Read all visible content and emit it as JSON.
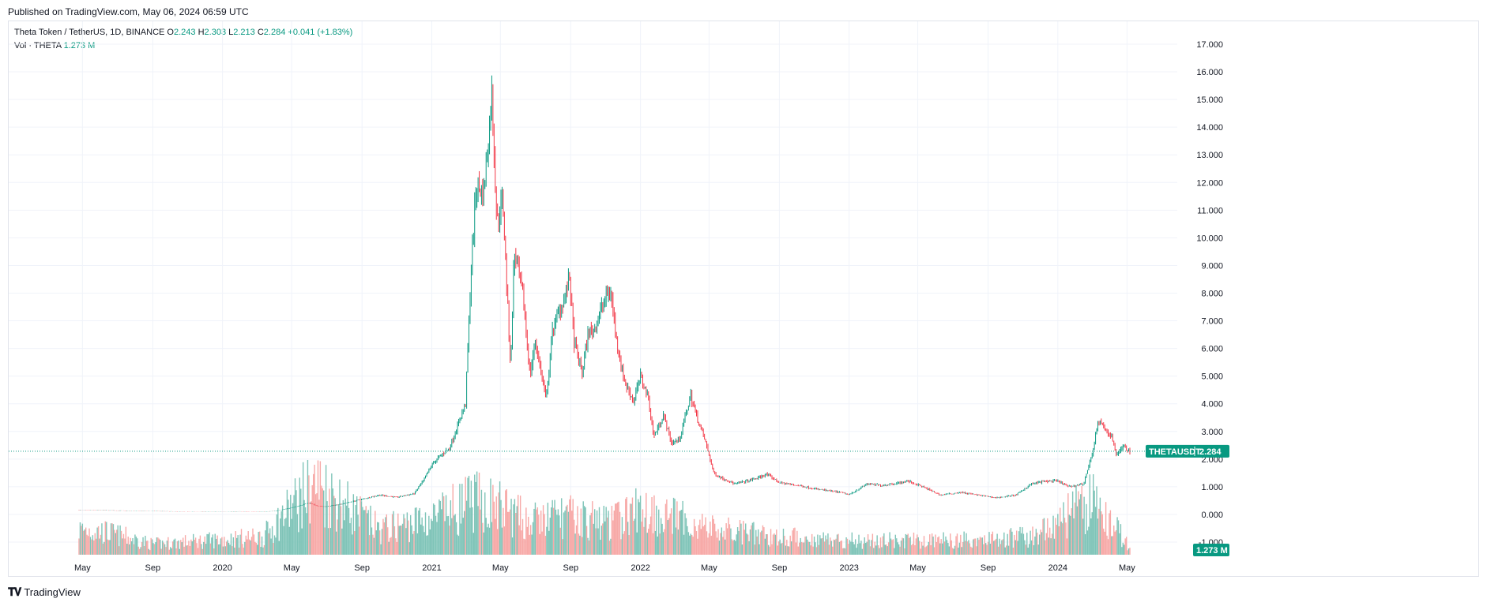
{
  "header": {
    "published": "Published on TradingView.com, May 06, 2024 06:59 UTC"
  },
  "legend": {
    "symbol": "Theta Token / TetherUS, 1D, BINANCE",
    "o_label": "O",
    "o": "2.243",
    "h_label": "H",
    "h": "2.303",
    "l_label": "L",
    "l": "2.213",
    "c_label": "C",
    "c": "2.284",
    "change": "+0.041 (+1.83%)",
    "vol_label": "Vol · THETA",
    "vol_value": "1.273 M"
  },
  "badges": {
    "symbol": "THETAUSDT",
    "price": "2.284",
    "volume": "1.273 M"
  },
  "colors": {
    "up": "#089981",
    "down": "#f23645",
    "up_vol": "#7fc4b8",
    "down_vol": "#f7a9a7",
    "grid": "#f0f3fa",
    "text": "#131722"
  },
  "footer": {
    "brand": "TradingView",
    "logo_icon": "tradingview-logo-icon"
  },
  "chart_data": {
    "type": "candlestick",
    "title": "Theta Token / TetherUS, 1D, BINANCE",
    "ylim": [
      -1,
      17
    ],
    "y_ticks": [
      "17.000",
      "16.000",
      "15.000",
      "14.000",
      "13.000",
      "12.000",
      "11.000",
      "10.000",
      "9.000",
      "8.000",
      "7.000",
      "6.000",
      "5.000",
      "4.000",
      "3.000",
      "2.000",
      "1.000",
      "0.000",
      "-1.000"
    ],
    "y_tick_values": [
      17,
      16,
      15,
      14,
      13,
      12,
      11,
      10,
      9,
      8,
      7,
      6,
      5,
      4,
      3,
      2,
      1,
      0,
      -1
    ],
    "x_ticks": [
      "May",
      "Sep",
      "2020",
      "May",
      "Sep",
      "2021",
      "May",
      "Sep",
      "2022",
      "May",
      "Sep",
      "2023",
      "May",
      "Sep",
      "2024",
      "May"
    ],
    "x_tick_dates": [
      "2019-05-01",
      "2019-09-01",
      "2020-01-01",
      "2020-05-01",
      "2020-09-01",
      "2021-01-01",
      "2021-05-01",
      "2021-09-01",
      "2022-01-01",
      "2022-05-01",
      "2022-09-01",
      "2023-01-01",
      "2023-05-01",
      "2023-09-01",
      "2024-01-01",
      "2024-05-01"
    ],
    "x_start": "2019-04-25",
    "x_end": "2024-05-06",
    "last_price": 2.284,
    "series": [
      {
        "name": "THETAUSDT",
        "points": [
          [
            "2019-04-25",
            0.16
          ],
          [
            "2019-06-01",
            0.15
          ],
          [
            "2019-07-01",
            0.14
          ],
          [
            "2019-08-01",
            0.13
          ],
          [
            "2019-09-01",
            0.12
          ],
          [
            "2019-10-01",
            0.11
          ],
          [
            "2019-11-01",
            0.1
          ],
          [
            "2019-12-01",
            0.09
          ],
          [
            "2020-01-01",
            0.1
          ],
          [
            "2020-02-01",
            0.11
          ],
          [
            "2020-03-01",
            0.09
          ],
          [
            "2020-04-01",
            0.12
          ],
          [
            "2020-05-01",
            0.24
          ],
          [
            "2020-06-01",
            0.42
          ],
          [
            "2020-06-15",
            0.3
          ],
          [
            "2020-07-01",
            0.28
          ],
          [
            "2020-08-01",
            0.4
          ],
          [
            "2020-09-01",
            0.55
          ],
          [
            "2020-10-01",
            0.7
          ],
          [
            "2020-11-01",
            0.62
          ],
          [
            "2020-12-01",
            0.75
          ],
          [
            "2020-12-20",
            1.3
          ],
          [
            "2021-01-01",
            1.8
          ],
          [
            "2021-01-15",
            2.1
          ],
          [
            "2021-02-01",
            2.4
          ],
          [
            "2021-02-15",
            3.2
          ],
          [
            "2021-03-01",
            4.0
          ],
          [
            "2021-03-10",
            8.5
          ],
          [
            "2021-03-20",
            12.0
          ],
          [
            "2021-04-01",
            11.5
          ],
          [
            "2021-04-10",
            13.5
          ],
          [
            "2021-04-16",
            15.2
          ],
          [
            "2021-04-25",
            10.5
          ],
          [
            "2021-05-05",
            11.5
          ],
          [
            "2021-05-19",
            5.2
          ],
          [
            "2021-05-25",
            9.5
          ],
          [
            "2021-06-10",
            7.8
          ],
          [
            "2021-06-22",
            5.0
          ],
          [
            "2021-07-01",
            6.3
          ],
          [
            "2021-07-20",
            4.1
          ],
          [
            "2021-08-01",
            6.8
          ],
          [
            "2021-08-20",
            7.8
          ],
          [
            "2021-08-30",
            8.5
          ],
          [
            "2021-09-07",
            6.2
          ],
          [
            "2021-09-21",
            5.1
          ],
          [
            "2021-10-01",
            6.5
          ],
          [
            "2021-10-15",
            6.8
          ],
          [
            "2021-10-30",
            7.8
          ],
          [
            "2021-11-10",
            8.1
          ],
          [
            "2021-11-20",
            6.3
          ],
          [
            "2021-12-04",
            4.8
          ],
          [
            "2021-12-20",
            4.1
          ],
          [
            "2022-01-01",
            5.0
          ],
          [
            "2022-01-15",
            4.2
          ],
          [
            "2022-01-24",
            2.8
          ],
          [
            "2022-02-10",
            3.6
          ],
          [
            "2022-02-24",
            2.6
          ],
          [
            "2022-03-10",
            2.7
          ],
          [
            "2022-03-30",
            4.3
          ],
          [
            "2022-04-10",
            3.5
          ],
          [
            "2022-04-25",
            2.6
          ],
          [
            "2022-05-09",
            1.5
          ],
          [
            "2022-05-20",
            1.35
          ],
          [
            "2022-06-15",
            1.1
          ],
          [
            "2022-07-15",
            1.25
          ],
          [
            "2022-08-10",
            1.45
          ],
          [
            "2022-09-01",
            1.15
          ],
          [
            "2022-10-01",
            1.05
          ],
          [
            "2022-11-10",
            0.9
          ],
          [
            "2022-12-15",
            0.8
          ],
          [
            "2023-01-01",
            0.72
          ],
          [
            "2023-02-01",
            1.1
          ],
          [
            "2023-03-01",
            1.05
          ],
          [
            "2023-04-15",
            1.2
          ],
          [
            "2023-05-15",
            0.95
          ],
          [
            "2023-06-10",
            0.7
          ],
          [
            "2023-07-15",
            0.8
          ],
          [
            "2023-08-20",
            0.68
          ],
          [
            "2023-09-15",
            0.6
          ],
          [
            "2023-10-20",
            0.7
          ],
          [
            "2023-11-15",
            1.1
          ],
          [
            "2023-12-10",
            1.2
          ],
          [
            "2024-01-01",
            1.2
          ],
          [
            "2024-01-20",
            1.0
          ],
          [
            "2024-02-15",
            1.1
          ],
          [
            "2024-03-01",
            2.2
          ],
          [
            "2024-03-12",
            3.4
          ],
          [
            "2024-03-25",
            3.0
          ],
          [
            "2024-04-05",
            2.8
          ],
          [
            "2024-04-13",
            2.1
          ],
          [
            "2024-04-23",
            2.5
          ],
          [
            "2024-05-06",
            2.28
          ]
        ]
      },
      {
        "name": "Vol · THETA",
        "points": [
          [
            "2019-05-10",
            0.35
          ],
          [
            "2019-06-20",
            0.3
          ],
          [
            "2019-09-01",
            0.15
          ],
          [
            "2020-03-12",
            0.25
          ],
          [
            "2020-06-10",
            1.0
          ],
          [
            "2020-10-01",
            0.35
          ],
          [
            "2021-01-01",
            0.5
          ],
          [
            "2021-03-15",
            0.75
          ],
          [
            "2021-04-20",
            0.7
          ],
          [
            "2021-05-19",
            0.6
          ],
          [
            "2021-06-22",
            0.45
          ],
          [
            "2021-08-15",
            0.55
          ],
          [
            "2021-11-10",
            0.45
          ],
          [
            "2022-01-05",
            0.65
          ],
          [
            "2022-04-20",
            0.4
          ],
          [
            "2022-05-10",
            0.35
          ],
          [
            "2022-09-01",
            0.25
          ],
          [
            "2023-01-15",
            0.2
          ],
          [
            "2023-06-10",
            0.2
          ],
          [
            "2023-11-15",
            0.25
          ],
          [
            "2024-03-05",
            0.75
          ],
          [
            "2024-03-12",
            0.6
          ],
          [
            "2024-04-13",
            0.35
          ],
          [
            "2024-05-06",
            0.1
          ]
        ]
      }
    ]
  }
}
